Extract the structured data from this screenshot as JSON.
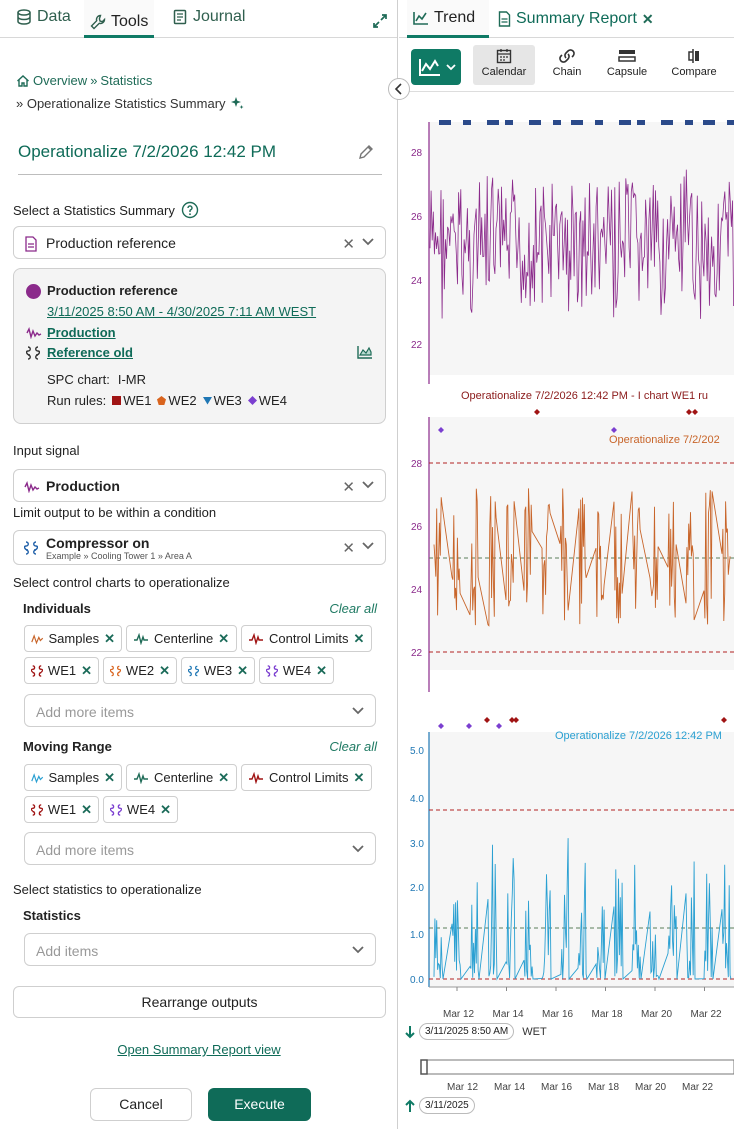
{
  "left_tabs": {
    "data": "Data",
    "tools": "Tools",
    "journal": "Journal"
  },
  "breadcrumb": {
    "overview": "Overview",
    "sep": "»",
    "statistics": "Statistics",
    "current": "» Operationalize Statistics Summary"
  },
  "tool_title": "Operationalize 7/2/2026 12:42 PM",
  "summary_section": {
    "label": "Select a Statistics Summary",
    "selected": "Production reference"
  },
  "summary_info": {
    "name": "Production reference",
    "range": "3/11/2025 8:50 AM - 4/30/2025 7:11 AM WEST",
    "signal": "Production",
    "condition": "Reference old",
    "spc_label": "SPC chart:",
    "spc_value": "I-MR",
    "run_rules_label": "Run rules:",
    "run_rules": [
      {
        "label": "WE1",
        "color": "#a01414",
        "shape": "square"
      },
      {
        "label": "WE2",
        "color": "#d9641e",
        "shape": "pentagon"
      },
      {
        "label": "WE3",
        "color": "#1f77b4",
        "shape": "triangle-down"
      },
      {
        "label": "WE4",
        "color": "#7b3fd0",
        "shape": "diamond"
      }
    ]
  },
  "input_signal": {
    "label": "Input signal",
    "value": "Production"
  },
  "limit_condition": {
    "label": "Limit output to be within a condition",
    "value": "Compressor on",
    "path": "Example » Cooling Tower 1 » Area A"
  },
  "control_charts_label": "Select control charts to operationalize",
  "individuals": {
    "title": "Individuals",
    "clear": "Clear all",
    "chips": [
      "Samples",
      "Centerline",
      "Control Limits",
      "WE1",
      "WE2",
      "WE3",
      "WE4"
    ],
    "add_placeholder": "Add more items"
  },
  "moving_range": {
    "title": "Moving Range",
    "clear": "Clear all",
    "chips": [
      "Samples",
      "Centerline",
      "Control Limits",
      "WE1",
      "WE4"
    ],
    "add_placeholder": "Add more items"
  },
  "statistics_section": {
    "label": "Select statistics to operationalize",
    "title": "Statistics",
    "placeholder": "Add items"
  },
  "buttons": {
    "rearrange": "Rearrange outputs",
    "open_report": "Open Summary Report view",
    "cancel": "Cancel",
    "execute": "Execute"
  },
  "right_tabs": {
    "trend": "Trend",
    "summary_report": "Summary Report"
  },
  "toolbar": {
    "calendar": "Calendar",
    "chain": "Chain",
    "capsule": "Capsule",
    "compare": "Compare"
  },
  "colors": {
    "accent": "#0f6b58",
    "purple": "#8b2a8b",
    "orange": "#c8652a",
    "blue": "#2aa0d2",
    "limit_red": "#b22222"
  },
  "trend": {
    "lane1": {
      "y_ticks": [
        "28",
        "26",
        "24",
        "22"
      ]
    },
    "lane2": {
      "label": "Operationalize 7/2/2026 12:42 PM - I chart WE1 ru",
      "y_ticks": [
        "28",
        "26",
        "24",
        "22"
      ],
      "sublabel": "Operationalize 7/2/202"
    },
    "lane3": {
      "label": "Operationalize 7/2/2026 12:42 PM",
      "y_ticks": [
        "5.0",
        "4.0",
        "3.0",
        "2.0",
        "1.0",
        "0.0"
      ]
    },
    "x_ticks": [
      "Mar 12",
      "Mar 14",
      "Mar 16",
      "Mar 18",
      "Mar 20",
      "Mar 22"
    ],
    "start_time": "3/11/2025 8:50 AM",
    "timezone": "WET",
    "nav_start": "3/11/2025"
  }
}
